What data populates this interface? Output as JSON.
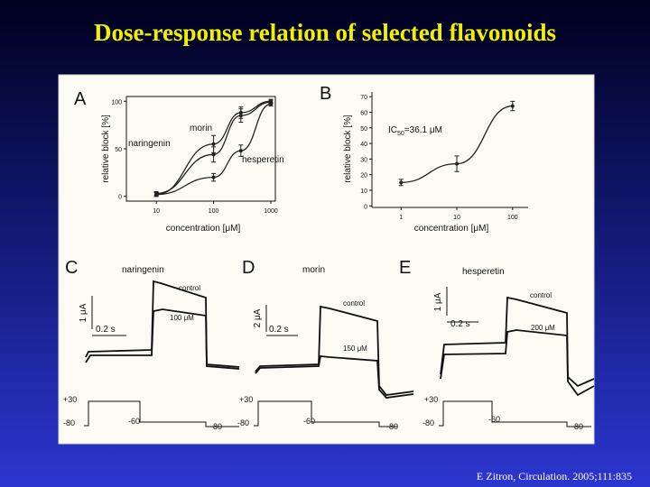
{
  "title": "Dose-response relation of selected flavonoids",
  "citation": "E Zitron, Circulation. 2005;111:835",
  "chart_data": [
    {
      "type": "line",
      "panel": "A",
      "xlabel": "concentration [μM]",
      "ylabel": "relative block [%]",
      "xscale": "log",
      "xlim": [
        3,
        1200
      ],
      "ylim": [
        -5,
        105
      ],
      "xticks": [
        10,
        100,
        1000
      ],
      "yticks": [
        0,
        50,
        100
      ],
      "x": [
        10,
        100,
        300,
        1000
      ],
      "series": [
        {
          "name": "morin",
          "color": "#222222",
          "values": [
            3,
            44,
            85,
            99
          ],
          "errors": [
            2,
            8,
            7,
            2
          ]
        },
        {
          "name": "naringenin",
          "color": "#222222",
          "values": [
            2,
            55,
            88,
            100
          ],
          "errors": [
            2,
            9,
            6,
            2
          ]
        },
        {
          "name": "hesperetin",
          "color": "#222222",
          "values": [
            2,
            20,
            48,
            97
          ],
          "errors": [
            2,
            4,
            6,
            2
          ]
        }
      ]
    },
    {
      "type": "line",
      "panel": "B",
      "xlabel": "concentration [μM]",
      "ylabel": "relative block [%]",
      "xscale": "log",
      "xlim": [
        0.3,
        190
      ],
      "ylim": [
        -1,
        73
      ],
      "xticks": [
        1,
        10,
        100
      ],
      "yticks": [
        0,
        10,
        20,
        30,
        40,
        50,
        60,
        70
      ],
      "x": [
        1,
        10,
        100
      ],
      "series": [
        {
          "name": "IC50",
          "color": "#222222",
          "values": [
            15,
            27,
            64
          ],
          "errors": [
            2,
            5,
            3
          ]
        }
      ],
      "annotation": {
        "prefix": "IC",
        "sub": "50",
        "rest": "=36.1 μM"
      }
    }
  ],
  "panels": [
    {
      "label": "C",
      "drug": "naringenin",
      "control": "control",
      "concentration": "100 μM",
      "current_scale": "1 μA",
      "time_scale": "0.2 s",
      "voltages": [
        "+30",
        "-80",
        "-60",
        "-80"
      ]
    },
    {
      "label": "D",
      "drug": "morin",
      "control": "control",
      "concentration": "150 μM",
      "current_scale": "2 μA",
      "time_scale": "0.2 s",
      "voltages": [
        "+30",
        "-80",
        "-60",
        "-80"
      ]
    },
    {
      "label": "E",
      "drug": "hesperetin",
      "control": "control",
      "concentration": "200 μM",
      "current_scale": "1 μA",
      "time_scale": "0.2 s",
      "voltages": [
        "+30",
        "-80",
        "-60",
        "-80"
      ]
    }
  ]
}
